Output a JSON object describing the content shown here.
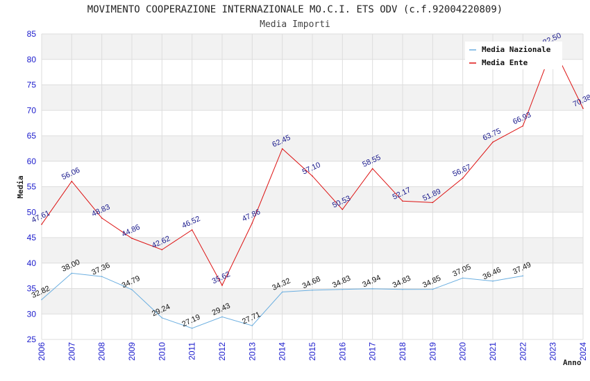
{
  "chart_data": {
    "type": "line",
    "title": "MOVIMENTO COOPERAZIONE INTERNAZIONALE MO.C.I. ETS ODV (c.f.92004220809)",
    "subtitle": "Media Importi",
    "xlabel": "Anno",
    "ylabel": "Media",
    "ylim": [
      25,
      85
    ],
    "ystep": 5,
    "categories": [
      "2006",
      "2007",
      "2008",
      "2009",
      "2010",
      "2011",
      "2012",
      "2013",
      "2014",
      "2015",
      "2016",
      "2017",
      "2018",
      "2019",
      "2020",
      "2021",
      "2022",
      "2023",
      "2024"
    ],
    "series": [
      {
        "name": "Media Nazionale",
        "color": "#6aaee0",
        "label_color": "#111111",
        "values": [
          32.82,
          38.0,
          37.36,
          34.79,
          29.24,
          27.19,
          29.43,
          27.71,
          34.32,
          34.68,
          34.83,
          34.94,
          34.83,
          34.85,
          37.05,
          36.46,
          37.49,
          null,
          null
        ],
        "labels": [
          "32.82",
          "38.00",
          "37.36",
          "34.79",
          "29.24",
          "27.19",
          "29.43",
          "27.71",
          "34.32",
          "34.68",
          "34.83",
          "34.94",
          "34.83",
          "34.85",
          "37.05",
          "36.46",
          "37.49",
          "",
          ""
        ]
      },
      {
        "name": "Media Ente",
        "color": "#dd1111",
        "label_color": "#1a1a8c",
        "values": [
          47.61,
          56.06,
          48.83,
          44.86,
          42.62,
          46.52,
          35.62,
          47.86,
          62.45,
          57.1,
          50.53,
          58.55,
          52.17,
          51.89,
          56.67,
          63.75,
          66.93,
          82.5,
          70.38
        ],
        "labels": [
          "47.61",
          "56.06",
          "48.83",
          "44.86",
          "42.62",
          "46.52",
          "35.62",
          "47.86",
          "62.45",
          "57.10",
          "50.53",
          "58.55",
          "52.17",
          "51.89",
          "56.67",
          "63.75",
          "66.93",
          "82.50",
          "70.38"
        ]
      }
    ],
    "grid": true,
    "legend_position": "top-right",
    "colors": {
      "band": "#f2f2f2",
      "grid": "#dddddd",
      "tick_text": "#1a1acc"
    }
  }
}
